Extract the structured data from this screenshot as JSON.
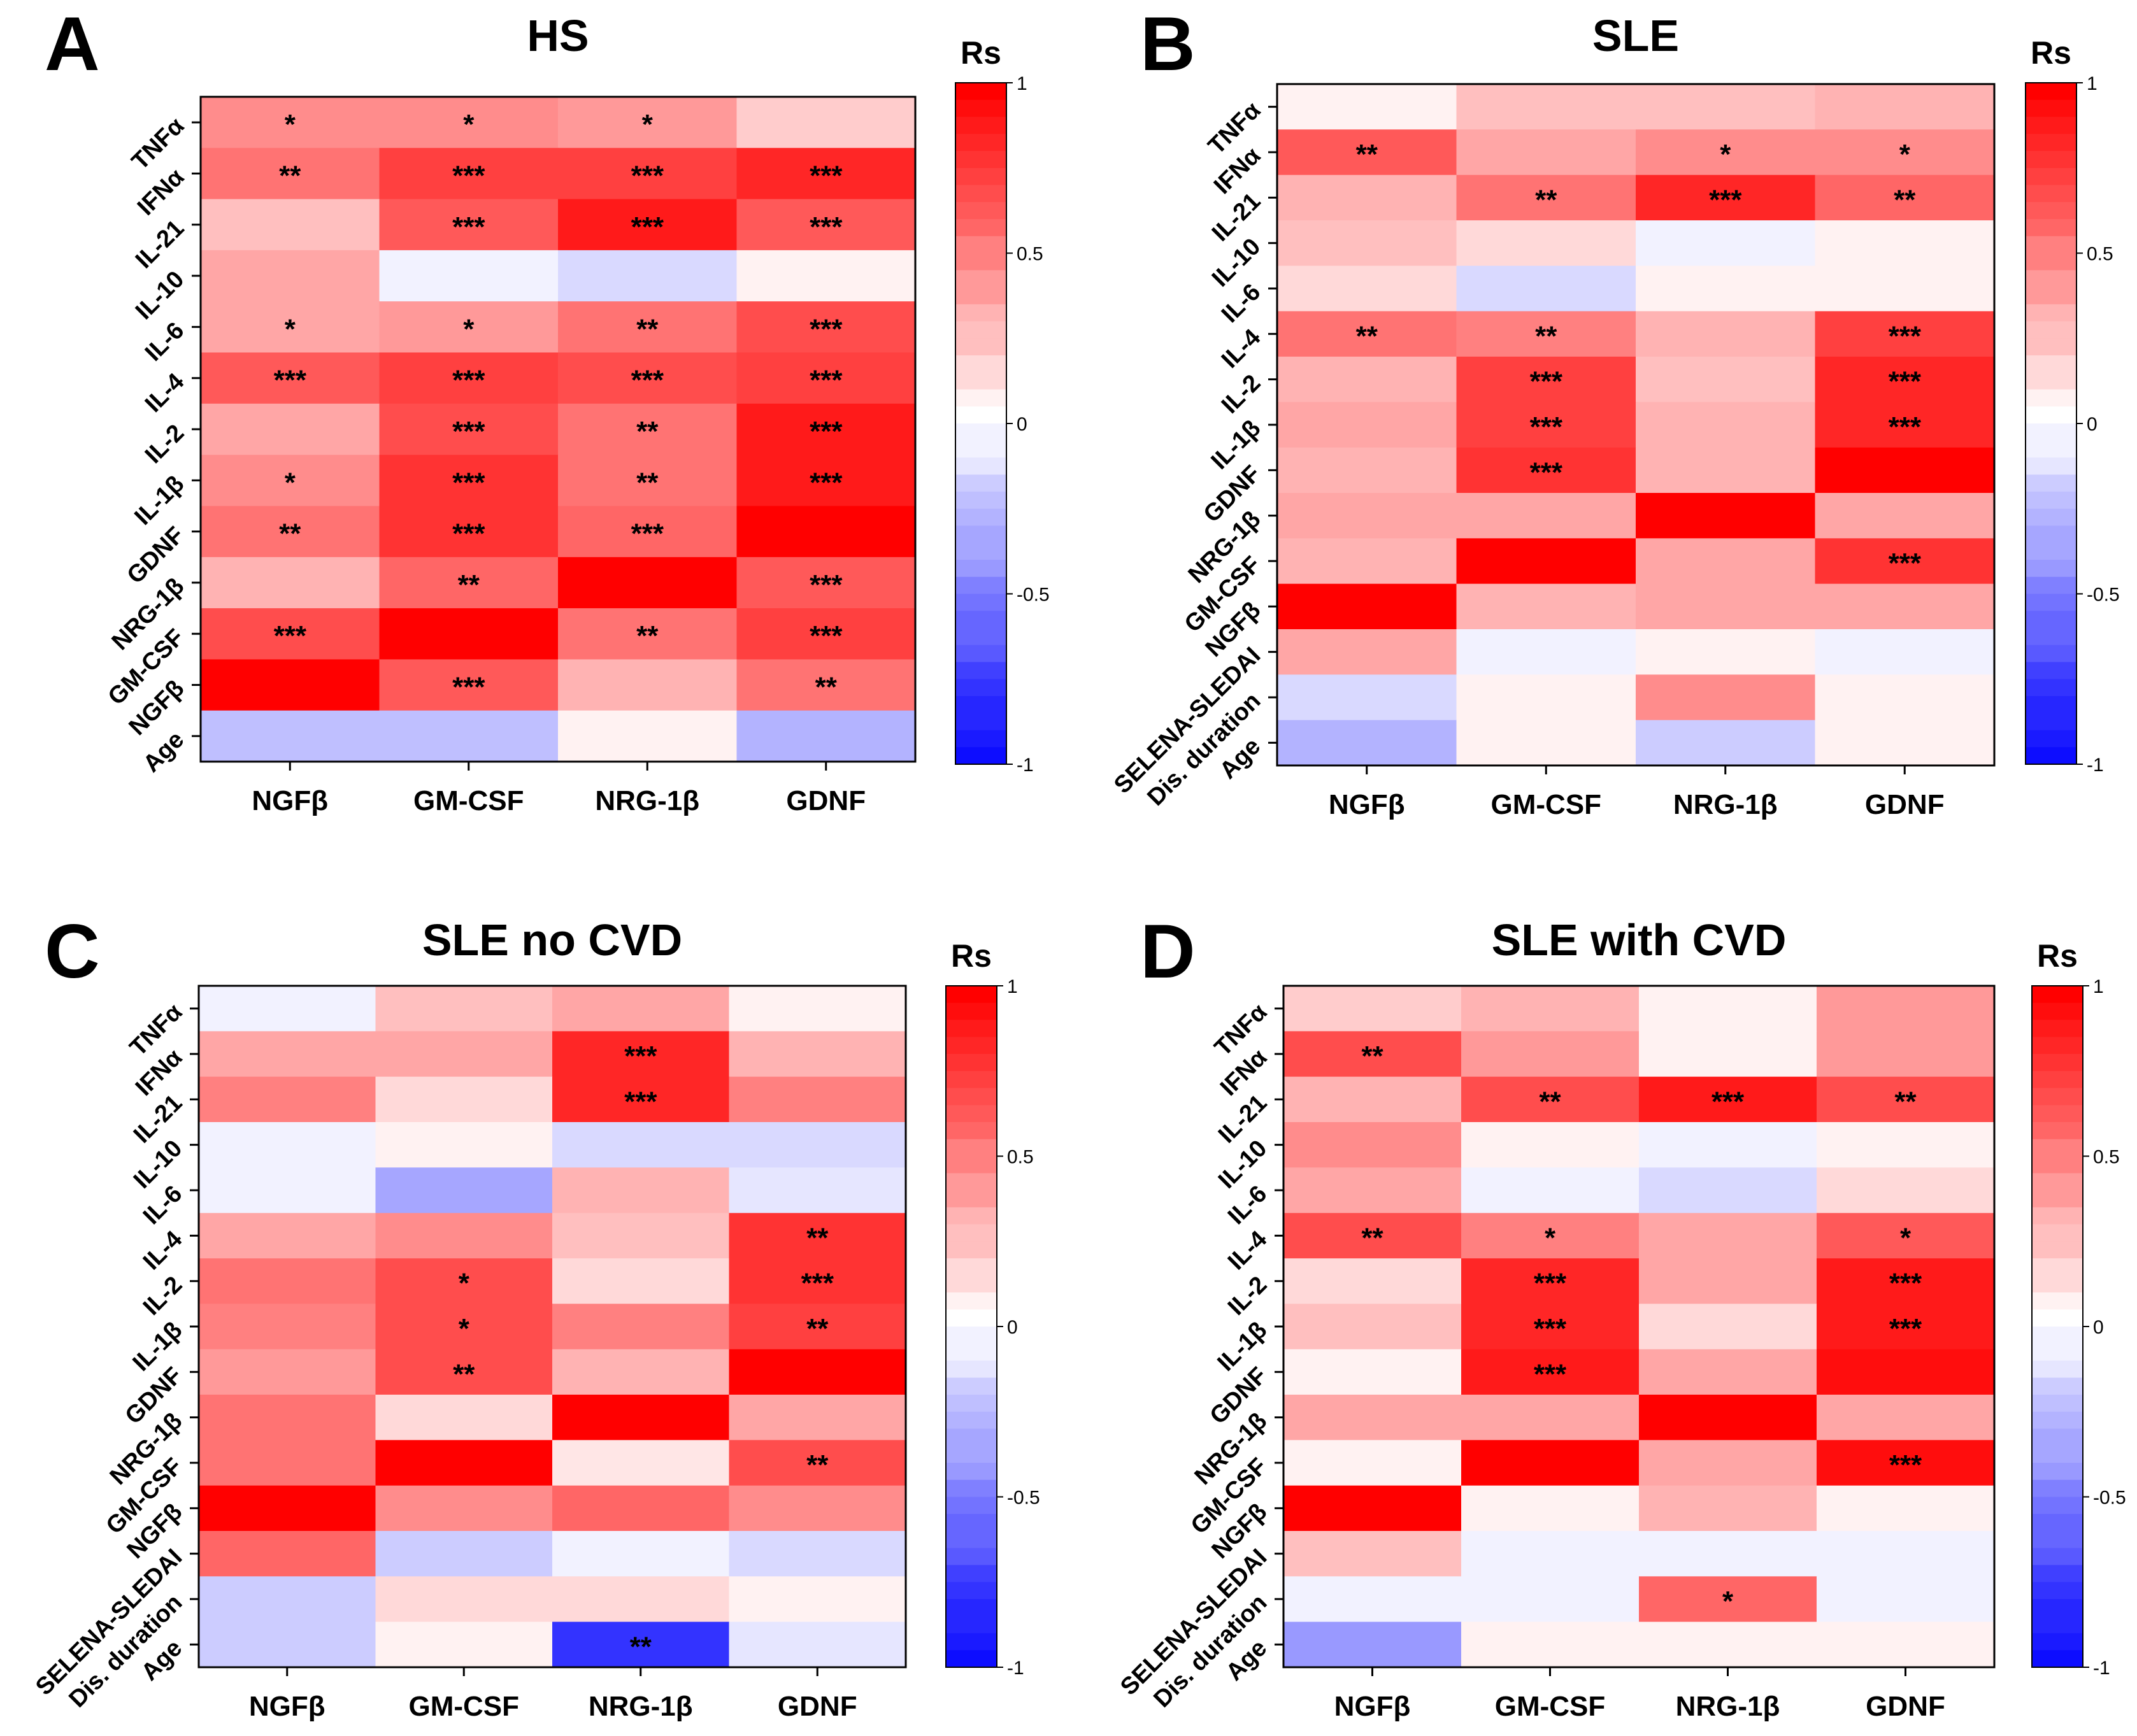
{
  "figure": {
    "colorbar_title": "Rs",
    "colorbar_ticks": [
      "1",
      "0.5",
      "0",
      "-0.5",
      "-1"
    ],
    "colorbar_tick_values": [
      1,
      0.5,
      0,
      -0.5,
      -1
    ],
    "colors": {
      "positive": "#ff0000",
      "neutral": "#ffffff",
      "negative": "#0000ff",
      "frame": "#000000",
      "text": "#000000"
    }
  },
  "chart_data": [
    {
      "type": "heatmap",
      "panel_label": "A",
      "title": "HS",
      "columns": [
        "NGFβ",
        "GM-CSF",
        "NRG-1β",
        "GDNF"
      ],
      "rows": [
        "TNFα",
        "IFNα",
        "IL-21",
        "IL-10",
        "IL-6",
        "IL-4",
        "IL-2",
        "IL-1β",
        "GDNF",
        "NRG-1β",
        "GM-CSF",
        "NGFβ",
        "Age"
      ],
      "values": [
        [
          0.45,
          0.45,
          0.4,
          0.2
        ],
        [
          0.55,
          0.75,
          0.75,
          0.85
        ],
        [
          0.25,
          0.65,
          0.9,
          0.65
        ],
        [
          0.35,
          -0.05,
          -0.15,
          0.05
        ],
        [
          0.35,
          0.4,
          0.55,
          0.7
        ],
        [
          0.65,
          0.75,
          0.7,
          0.75
        ],
        [
          0.35,
          0.7,
          0.55,
          0.9
        ],
        [
          0.45,
          0.8,
          0.55,
          0.9
        ],
        [
          0.55,
          0.8,
          0.6,
          1.0
        ],
        [
          0.3,
          0.6,
          1.0,
          0.65
        ],
        [
          0.7,
          1.0,
          0.55,
          0.75
        ],
        [
          1.0,
          0.65,
          0.3,
          0.55
        ],
        [
          -0.25,
          -0.25,
          0.05,
          -0.3
        ]
      ],
      "significance": [
        [
          "*",
          "*",
          "*",
          ""
        ],
        [
          "**",
          "***",
          "***",
          "***"
        ],
        [
          "",
          "***",
          "***",
          "***"
        ],
        [
          "",
          "",
          "",
          ""
        ],
        [
          "*",
          "*",
          "**",
          "***"
        ],
        [
          "***",
          "***",
          "***",
          "***"
        ],
        [
          "",
          "***",
          "**",
          "***"
        ],
        [
          "*",
          "***",
          "**",
          "***"
        ],
        [
          "**",
          "***",
          "***",
          ""
        ],
        [
          "",
          "**",
          "",
          "***"
        ],
        [
          "***",
          "",
          "**",
          "***"
        ],
        [
          "",
          "***",
          "",
          "**"
        ],
        [
          "",
          "",
          "",
          ""
        ]
      ],
      "clim": [
        -1,
        1
      ]
    },
    {
      "type": "heatmap",
      "panel_label": "B",
      "title": "SLE",
      "columns": [
        "NGFβ",
        "GM-CSF",
        "NRG-1β",
        "GDNF"
      ],
      "rows": [
        "TNFα",
        "IFNα",
        "IL-21",
        "IL-10",
        "IL-6",
        "IL-4",
        "IL-2",
        "IL-1β",
        "GDNF",
        "NRG-1β",
        "GM-CSF",
        "NGFβ",
        "SELENA-SLEDAI",
        "Dis. duration",
        "Age"
      ],
      "values": [
        [
          0.05,
          0.25,
          0.25,
          0.3
        ],
        [
          0.65,
          0.35,
          0.45,
          0.45
        ],
        [
          0.3,
          0.55,
          0.85,
          0.6
        ],
        [
          0.25,
          0.15,
          -0.05,
          0.05
        ],
        [
          0.15,
          -0.15,
          0.05,
          0.05
        ],
        [
          0.55,
          0.5,
          0.3,
          0.75
        ],
        [
          0.3,
          0.75,
          0.25,
          0.85
        ],
        [
          0.35,
          0.75,
          0.3,
          0.85
        ],
        [
          0.3,
          0.8,
          0.3,
          1.0
        ],
        [
          0.35,
          0.35,
          1.0,
          0.35
        ],
        [
          0.3,
          1.0,
          0.35,
          0.8
        ],
        [
          1.0,
          0.3,
          0.35,
          0.35
        ],
        [
          0.35,
          -0.05,
          0.05,
          -0.05
        ],
        [
          -0.15,
          0.05,
          0.45,
          0.05
        ],
        [
          -0.3,
          0.05,
          -0.2,
          0.05
        ]
      ],
      "significance": [
        [
          "",
          "",
          "",
          ""
        ],
        [
          "**",
          "",
          "*",
          "*"
        ],
        [
          "",
          "**",
          "***",
          "**"
        ],
        [
          "",
          "",
          "",
          ""
        ],
        [
          "",
          "",
          "",
          ""
        ],
        [
          "**",
          "**",
          "",
          "***"
        ],
        [
          "",
          "***",
          "",
          "***"
        ],
        [
          "",
          "***",
          "",
          "***"
        ],
        [
          "",
          "***",
          "",
          ""
        ],
        [
          "",
          "",
          "",
          ""
        ],
        [
          "",
          "",
          "",
          "***"
        ],
        [
          "",
          "",
          "",
          ""
        ],
        [
          "",
          "",
          "",
          ""
        ],
        [
          "",
          "",
          "",
          ""
        ],
        [
          "",
          "",
          "",
          ""
        ]
      ],
      "clim": [
        -1,
        1
      ]
    },
    {
      "type": "heatmap",
      "panel_label": "C",
      "title": "SLE no CVD",
      "columns": [
        "NGFβ",
        "GM-CSF",
        "NRG-1β",
        "GDNF"
      ],
      "rows": [
        "TNFα",
        "IFNα",
        "IL-21",
        "IL-10",
        "IL-6",
        "IL-4",
        "IL-2",
        "IL-1β",
        "GDNF",
        "NRG-1β",
        "GM-CSF",
        "NGFβ",
        "SELENA-SLEDAI",
        "Dis. duration",
        "Age"
      ],
      "values": [
        [
          -0.05,
          0.25,
          0.35,
          0.05
        ],
        [
          0.35,
          0.35,
          0.85,
          0.3
        ],
        [
          0.5,
          0.15,
          0.85,
          0.5
        ],
        [
          -0.05,
          0.05,
          -0.15,
          -0.15
        ],
        [
          -0.05,
          -0.35,
          0.3,
          -0.1
        ],
        [
          0.35,
          0.45,
          0.25,
          0.8
        ],
        [
          0.55,
          0.7,
          0.15,
          0.8
        ],
        [
          0.5,
          0.7,
          0.5,
          0.75
        ],
        [
          0.4,
          0.7,
          0.3,
          1.0
        ],
        [
          0.55,
          0.15,
          1.0,
          0.35
        ],
        [
          0.55,
          1.0,
          0.1,
          0.7
        ],
        [
          1.0,
          0.45,
          0.6,
          0.45
        ],
        [
          0.6,
          -0.2,
          -0.05,
          -0.15
        ],
        [
          -0.2,
          0.15,
          0.15,
          0.05
        ],
        [
          -0.2,
          0.05,
          -0.8,
          -0.1
        ]
      ],
      "significance": [
        [
          "",
          "",
          "",
          ""
        ],
        [
          "",
          "",
          "***",
          ""
        ],
        [
          "",
          "",
          "***",
          ""
        ],
        [
          "",
          "",
          "",
          ""
        ],
        [
          "",
          "",
          "",
          ""
        ],
        [
          "",
          "",
          "",
          "**"
        ],
        [
          "",
          "*",
          "",
          "***"
        ],
        [
          "",
          "*",
          "",
          "**"
        ],
        [
          "",
          "**",
          "",
          ""
        ],
        [
          "",
          "",
          "",
          ""
        ],
        [
          "",
          "",
          "",
          "**"
        ],
        [
          "",
          "",
          "",
          ""
        ],
        [
          "",
          "",
          "",
          ""
        ],
        [
          "",
          "",
          "",
          ""
        ],
        [
          "",
          "",
          "**",
          ""
        ]
      ],
      "clim": [
        -1,
        1
      ]
    },
    {
      "type": "heatmap",
      "panel_label": "D",
      "title": "SLE with CVD",
      "columns": [
        "NGFβ",
        "GM-CSF",
        "NRG-1β",
        "GDNF"
      ],
      "rows": [
        "TNFα",
        "IFNα",
        "IL-21",
        "IL-10",
        "IL-6",
        "IL-4",
        "IL-2",
        "IL-1β",
        "GDNF",
        "NRG-1β",
        "GM-CSF",
        "NGFβ",
        "SELENA-SLEDAI",
        "Dis. duration",
        "Age"
      ],
      "values": [
        [
          0.2,
          0.3,
          0.05,
          0.4
        ],
        [
          0.7,
          0.4,
          0.05,
          0.4
        ],
        [
          0.3,
          0.7,
          0.9,
          0.7
        ],
        [
          0.45,
          0.05,
          -0.05,
          0.05
        ],
        [
          0.35,
          -0.05,
          -0.15,
          0.15
        ],
        [
          0.7,
          0.5,
          0.35,
          0.65
        ],
        [
          0.15,
          0.85,
          0.35,
          0.9
        ],
        [
          0.25,
          0.85,
          0.15,
          0.9
        ],
        [
          0.05,
          0.9,
          0.35,
          0.95
        ],
        [
          0.35,
          0.35,
          1.0,
          0.35
        ],
        [
          0.05,
          1.0,
          0.35,
          0.95
        ],
        [
          1.0,
          0.05,
          0.3,
          0.05
        ],
        [
          0.25,
          -0.05,
          -0.05,
          -0.05
        ],
        [
          -0.05,
          -0.05,
          0.6,
          -0.05
        ],
        [
          -0.4,
          0.05,
          0.05,
          0.05
        ]
      ],
      "significance": [
        [
          "",
          "",
          "",
          ""
        ],
        [
          "**",
          "",
          "",
          ""
        ],
        [
          "",
          "**",
          "***",
          "**"
        ],
        [
          "",
          "",
          "",
          ""
        ],
        [
          "",
          "",
          "",
          ""
        ],
        [
          "**",
          "*",
          "",
          "*"
        ],
        [
          "",
          "***",
          "",
          "***"
        ],
        [
          "",
          "***",
          "",
          "***"
        ],
        [
          "",
          "***",
          "",
          ""
        ],
        [
          "",
          "",
          "",
          ""
        ],
        [
          "",
          "",
          "",
          "***"
        ],
        [
          "",
          "",
          "",
          ""
        ],
        [
          "",
          "",
          "",
          ""
        ],
        [
          "",
          "",
          "*",
          ""
        ],
        [
          "",
          "",
          "",
          ""
        ]
      ],
      "clim": [
        -1,
        1
      ]
    }
  ]
}
